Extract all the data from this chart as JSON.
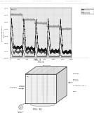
{
  "background_color": "#ffffff",
  "fig9_label": "FIG. 9",
  "fig10_label": "FIG. 10",
  "graph_facecolor": "#e8e8e8",
  "header_color": "#aaaaaa",
  "line_colors": [
    "#333333",
    "#555555",
    "#777777",
    "#999999"
  ],
  "legend_labels": [
    "Through Plane",
    "In Plane1",
    "In Plane2",
    "GDL thick"
  ],
  "xlabel": "Time (s)",
  "xlim": [
    0,
    1400
  ],
  "xticks": [
    0,
    200,
    400,
    600,
    800,
    1000,
    1200,
    1400
  ],
  "yticks_left": [
    0.0,
    0.05,
    0.1,
    0.15,
    0.2,
    0.25,
    0.3,
    0.35
  ],
  "box_label": "COLO",
  "fig9_area": [
    0.12,
    0.5,
    0.68,
    0.43
  ],
  "fig10_area": [
    0.02,
    0.04,
    0.96,
    0.44
  ],
  "gray_line": "#888888",
  "dark_gray": "#444444",
  "light_gray": "#cccccc",
  "mid_gray": "#aaaaaa"
}
